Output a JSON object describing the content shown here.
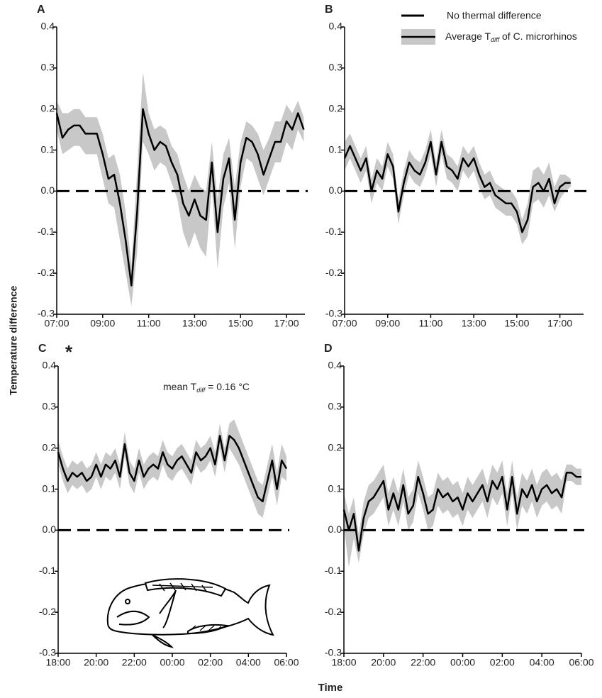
{
  "y_label": "Temperature difference",
  "x_label": "Time",
  "reference_line": {
    "name": "No thermal difference",
    "value": 0
  },
  "legend": {
    "entries": [
      {
        "name": "No thermal difference"
      },
      {
        "name": "Average T",
        "subscript": "diff",
        "name_end": " of C. microrhinos"
      }
    ]
  },
  "chart_data": [
    {
      "type": "line",
      "panel_label": "A",
      "x": [
        7,
        7.25,
        7.5,
        7.75,
        8,
        8.25,
        8.5,
        8.75,
        9,
        9.25,
        9.5,
        9.75,
        10,
        10.25,
        10.5,
        10.75,
        11,
        11.25,
        11.5,
        11.75,
        12,
        12.25,
        12.5,
        12.75,
        13,
        13.25,
        13.5,
        13.75,
        14,
        14.25,
        14.5,
        14.75,
        15,
        15.25,
        15.5,
        15.75,
        16,
        16.25,
        16.5,
        16.75,
        17,
        17.25,
        17.5,
        17.75
      ],
      "series": [
        {
          "color": "#000000",
          "band_color": "#c8c8c8",
          "values": [
            0.19,
            0.13,
            0.15,
            0.16,
            0.16,
            0.14,
            0.14,
            0.14,
            0.09,
            0.03,
            0.04,
            -0.03,
            -0.12,
            -0.23,
            -0.05,
            0.2,
            0.14,
            0.1,
            0.12,
            0.11,
            0.07,
            0.04,
            -0.03,
            -0.06,
            -0.02,
            -0.06,
            -0.07,
            0.07,
            -0.1,
            0.03,
            0.08,
            -0.07,
            0.07,
            0.13,
            0.12,
            0.09,
            0.04,
            0.08,
            0.12,
            0.12,
            0.17,
            0.15,
            0.19,
            0.15
          ],
          "upper": [
            0.22,
            0.19,
            0.19,
            0.2,
            0.2,
            0.18,
            0.18,
            0.18,
            0.14,
            0.08,
            0.09,
            0.04,
            -0.05,
            -0.18,
            0.05,
            0.29,
            0.19,
            0.15,
            0.16,
            0.15,
            0.11,
            0.09,
            0.04,
            0.0,
            0.04,
            0.01,
            0.0,
            0.12,
            -0.02,
            0.09,
            0.13,
            0.01,
            0.12,
            0.17,
            0.16,
            0.14,
            0.1,
            0.13,
            0.17,
            0.17,
            0.21,
            0.19,
            0.22,
            0.18
          ],
          "lower": [
            0.15,
            0.09,
            0.1,
            0.11,
            0.11,
            0.09,
            0.09,
            0.09,
            0.03,
            -0.03,
            -0.04,
            -0.12,
            -0.2,
            -0.28,
            -0.15,
            0.12,
            0.09,
            0.05,
            0.07,
            0.06,
            0.02,
            -0.02,
            -0.1,
            -0.14,
            -0.1,
            -0.14,
            -0.16,
            0.01,
            -0.19,
            -0.04,
            0.02,
            -0.14,
            0.01,
            0.08,
            0.07,
            0.03,
            -0.01,
            0.03,
            0.07,
            0.07,
            0.12,
            0.1,
            0.15,
            0.12
          ]
        }
      ],
      "xlim": [
        7,
        17.8
      ],
      "ylim": [
        -0.3,
        0.4
      ],
      "xticks": [
        {
          "value": 7,
          "label": "07:00"
        },
        {
          "value": 9,
          "label": "09:00"
        },
        {
          "value": 11,
          "label": "11:00"
        },
        {
          "value": 13,
          "label": "13:00"
        },
        {
          "value": 15,
          "label": "15:00"
        },
        {
          "value": 17,
          "label": "17:00"
        }
      ],
      "yticks": [
        -0.3,
        -0.2,
        -0.1,
        {
          "value": 0,
          "label": "0.0"
        },
        0.1,
        0.2,
        0.3,
        0.4
      ]
    },
    {
      "type": "line",
      "panel_label": "B",
      "x": [
        7,
        7.25,
        7.5,
        7.75,
        8,
        8.25,
        8.5,
        8.75,
        9,
        9.25,
        9.5,
        9.75,
        10,
        10.25,
        10.5,
        10.75,
        11,
        11.25,
        11.5,
        11.75,
        12,
        12.25,
        12.5,
        12.75,
        13,
        13.25,
        13.5,
        13.75,
        14,
        14.25,
        14.5,
        14.75,
        15,
        15.25,
        15.5,
        15.75,
        16,
        16.25,
        16.5,
        16.75,
        17,
        17.25,
        17.5
      ],
      "series": [
        {
          "color": "#000000",
          "band_color": "#c8c8c8",
          "values": [
            0.08,
            0.11,
            0.08,
            0.05,
            0.08,
            0.0,
            0.05,
            0.03,
            0.09,
            0.06,
            -0.05,
            0.02,
            0.07,
            0.05,
            0.04,
            0.07,
            0.12,
            0.04,
            0.12,
            0.06,
            0.05,
            0.03,
            0.08,
            0.06,
            0.08,
            0.04,
            0.01,
            0.02,
            -0.01,
            -0.02,
            -0.03,
            -0.03,
            -0.05,
            -0.1,
            -0.07,
            0.01,
            0.02,
            0.0,
            0.03,
            -0.03,
            0.01,
            0.02,
            0.02
          ],
          "upper": [
            0.12,
            0.14,
            0.11,
            0.08,
            0.11,
            0.03,
            0.08,
            0.06,
            0.12,
            0.09,
            -0.02,
            0.05,
            0.1,
            0.08,
            0.07,
            0.1,
            0.15,
            0.07,
            0.15,
            0.09,
            0.08,
            0.06,
            0.11,
            0.09,
            0.11,
            0.07,
            0.04,
            0.05,
            0.02,
            0.01,
            0.0,
            0.0,
            -0.02,
            -0.07,
            -0.03,
            0.05,
            0.06,
            0.04,
            0.07,
            0.01,
            0.04,
            0.04,
            0.03
          ],
          "lower": [
            0.05,
            0.08,
            0.05,
            0.02,
            0.05,
            -0.03,
            0.02,
            0.0,
            0.06,
            0.03,
            -0.08,
            -0.01,
            0.04,
            0.02,
            0.01,
            0.04,
            0.09,
            0.01,
            0.09,
            0.03,
            0.02,
            0.0,
            0.05,
            0.03,
            0.05,
            0.01,
            -0.02,
            -0.01,
            -0.04,
            -0.05,
            -0.06,
            -0.06,
            -0.08,
            -0.13,
            -0.11,
            -0.03,
            -0.02,
            -0.04,
            -0.01,
            -0.05,
            -0.02,
            0.0,
            0.01
          ]
        }
      ],
      "xlim": [
        7,
        18.1
      ],
      "ylim": [
        -0.3,
        0.4
      ],
      "xticks": [
        {
          "value": 7,
          "label": "07:00"
        },
        {
          "value": 9,
          "label": "09:00"
        },
        {
          "value": 11,
          "label": "11:00"
        },
        {
          "value": 13,
          "label": "13:00"
        },
        {
          "value": 15,
          "label": "15:00"
        },
        {
          "value": 17,
          "label": "17:00"
        }
      ],
      "yticks": [
        -0.3,
        -0.2,
        -0.1,
        {
          "value": 0,
          "label": "0.0"
        },
        0.1,
        0.2,
        0.3,
        0.4
      ]
    },
    {
      "type": "line",
      "panel_label": "C",
      "marker": "*",
      "annotation": {
        "text": "mean T",
        "subscript": "diff",
        "suffix": " = 0.16 °C"
      },
      "x": [
        18,
        18.25,
        18.5,
        18.75,
        19,
        19.25,
        19.5,
        19.75,
        20,
        20.25,
        20.5,
        20.75,
        21,
        21.25,
        21.5,
        21.75,
        22,
        22.25,
        22.5,
        22.75,
        23,
        23.25,
        23.5,
        23.75,
        24,
        24.25,
        24.5,
        24.75,
        25,
        25.25,
        25.5,
        25.75,
        26,
        26.25,
        26.5,
        26.75,
        27,
        27.25,
        27.5,
        27.75,
        28,
        28.25,
        28.5,
        28.75,
        29,
        29.25,
        29.5,
        29.75,
        30
      ],
      "series": [
        {
          "color": "#000000",
          "band_color": "#c8c8c8",
          "values": [
            0.19,
            0.15,
            0.12,
            0.14,
            0.13,
            0.14,
            0.12,
            0.13,
            0.16,
            0.13,
            0.16,
            0.15,
            0.17,
            0.13,
            0.21,
            0.14,
            0.12,
            0.17,
            0.13,
            0.15,
            0.16,
            0.15,
            0.19,
            0.16,
            0.15,
            0.17,
            0.18,
            0.16,
            0.14,
            0.19,
            0.17,
            0.18,
            0.2,
            0.16,
            0.23,
            0.17,
            0.23,
            0.22,
            0.2,
            0.17,
            0.14,
            0.11,
            0.08,
            0.07,
            0.12,
            0.17,
            0.1,
            0.17,
            0.15
          ],
          "upper": [
            0.22,
            0.18,
            0.15,
            0.17,
            0.16,
            0.17,
            0.15,
            0.16,
            0.19,
            0.16,
            0.19,
            0.18,
            0.2,
            0.16,
            0.24,
            0.17,
            0.15,
            0.2,
            0.16,
            0.18,
            0.19,
            0.18,
            0.22,
            0.19,
            0.18,
            0.2,
            0.21,
            0.19,
            0.17,
            0.22,
            0.2,
            0.21,
            0.23,
            0.19,
            0.26,
            0.2,
            0.26,
            0.27,
            0.24,
            0.21,
            0.18,
            0.15,
            0.12,
            0.11,
            0.16,
            0.21,
            0.14,
            0.21,
            0.18
          ],
          "lower": [
            0.16,
            0.12,
            0.09,
            0.11,
            0.1,
            0.11,
            0.09,
            0.1,
            0.13,
            0.1,
            0.13,
            0.12,
            0.14,
            0.1,
            0.18,
            0.11,
            0.09,
            0.14,
            0.1,
            0.12,
            0.13,
            0.12,
            0.16,
            0.13,
            0.12,
            0.14,
            0.15,
            0.13,
            0.11,
            0.16,
            0.14,
            0.15,
            0.17,
            0.13,
            0.2,
            0.14,
            0.2,
            0.18,
            0.16,
            0.13,
            0.1,
            0.07,
            0.04,
            0.03,
            0.08,
            0.13,
            0.06,
            0.13,
            0.12
          ]
        }
      ],
      "xlim": [
        18,
        30
      ],
      "ylim": [
        -0.3,
        0.4
      ],
      "xticks": [
        {
          "value": 18,
          "label": "18:00"
        },
        {
          "value": 20,
          "label": "20:00"
        },
        {
          "value": 22,
          "label": "22:00"
        },
        {
          "value": 24,
          "label": "00:00"
        },
        {
          "value": 26,
          "label": "02:00"
        },
        {
          "value": 28,
          "label": "04:00"
        },
        {
          "value": 30,
          "label": "06:00"
        }
      ],
      "yticks": [
        -0.3,
        -0.2,
        -0.1,
        {
          "value": 0,
          "label": "0.0"
        },
        0.1,
        0.2,
        0.3,
        0.4
      ]
    },
    {
      "type": "line",
      "panel_label": "D",
      "x": [
        18,
        18.25,
        18.5,
        18.75,
        19,
        19.25,
        19.5,
        19.75,
        20,
        20.25,
        20.5,
        20.75,
        21,
        21.25,
        21.5,
        21.75,
        22,
        22.25,
        22.5,
        22.75,
        23,
        23.25,
        23.5,
        23.75,
        24,
        24.25,
        24.5,
        24.75,
        25,
        25.25,
        25.5,
        25.75,
        26,
        26.25,
        26.5,
        26.75,
        27,
        27.25,
        27.5,
        27.75,
        28,
        28.25,
        28.5,
        28.75,
        29,
        29.25,
        29.5,
        29.75,
        30
      ],
      "series": [
        {
          "color": "#000000",
          "band_color": "#c8c8c8",
          "values": [
            0.05,
            0.0,
            0.04,
            -0.05,
            0.03,
            0.07,
            0.08,
            0.1,
            0.12,
            0.05,
            0.09,
            0.05,
            0.11,
            0.04,
            0.06,
            0.13,
            0.09,
            0.04,
            0.05,
            0.1,
            0.08,
            0.09,
            0.07,
            0.08,
            0.05,
            0.09,
            0.07,
            0.09,
            0.11,
            0.07,
            0.12,
            0.1,
            0.13,
            0.05,
            0.13,
            0.04,
            0.1,
            0.08,
            0.11,
            0.07,
            0.1,
            0.11,
            0.09,
            0.1,
            0.08,
            0.14,
            0.14,
            0.13,
            0.13
          ],
          "upper": [
            0.09,
            0.04,
            0.08,
            -0.01,
            0.07,
            0.11,
            0.12,
            0.14,
            0.16,
            0.09,
            0.13,
            0.09,
            0.15,
            0.08,
            0.1,
            0.17,
            0.13,
            0.08,
            0.09,
            0.14,
            0.12,
            0.13,
            0.11,
            0.12,
            0.09,
            0.13,
            0.11,
            0.13,
            0.15,
            0.11,
            0.16,
            0.14,
            0.17,
            0.09,
            0.17,
            0.08,
            0.14,
            0.12,
            0.15,
            0.11,
            0.14,
            0.15,
            0.13,
            0.14,
            0.12,
            0.16,
            0.16,
            0.15,
            0.15
          ],
          "lower": [
            0.01,
            -0.09,
            -0.02,
            -0.08,
            -0.01,
            0.03,
            0.04,
            0.06,
            0.08,
            0.01,
            0.05,
            0.01,
            0.07,
            0.0,
            0.02,
            0.09,
            0.05,
            0.0,
            0.01,
            0.06,
            0.04,
            0.05,
            0.03,
            0.04,
            0.01,
            0.05,
            0.03,
            0.05,
            0.07,
            0.03,
            0.08,
            0.06,
            0.09,
            0.01,
            0.09,
            0.0,
            0.06,
            0.04,
            0.07,
            0.03,
            0.06,
            0.07,
            0.05,
            0.06,
            0.04,
            0.12,
            0.12,
            0.11,
            0.11
          ]
        }
      ],
      "xlim": [
        18,
        30
      ],
      "ylim": [
        -0.3,
        0.4
      ],
      "xticks": [
        {
          "value": 18,
          "label": "18:00"
        },
        {
          "value": 20,
          "label": "20:00"
        },
        {
          "value": 22,
          "label": "22:00"
        },
        {
          "value": 24,
          "label": "00:00"
        },
        {
          "value": 26,
          "label": "02:00"
        },
        {
          "value": 28,
          "label": "04:00"
        },
        {
          "value": 30,
          "label": "06:00"
        }
      ],
      "yticks": [
        -0.3,
        -0.2,
        -0.1,
        {
          "value": 0,
          "label": "0.0"
        },
        0.1,
        0.2,
        0.3,
        0.4
      ]
    }
  ]
}
